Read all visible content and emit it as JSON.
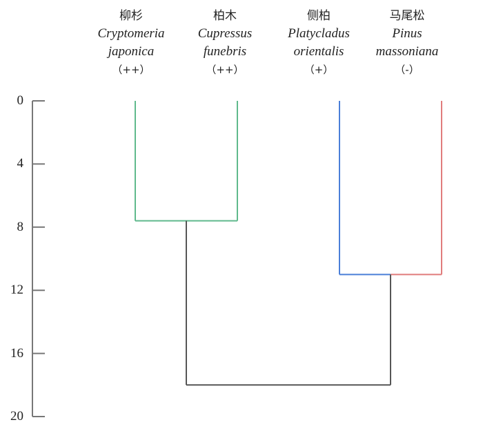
{
  "chart_data": {
    "type": "dendrogram",
    "orientation": "top-down",
    "yaxis": {
      "range": [
        0,
        20
      ],
      "ticks": [
        "0",
        "4",
        "8",
        "12",
        "16",
        "20"
      ],
      "direction": "increasing-downward"
    },
    "leaves": [
      {
        "cn": "柳杉",
        "latin1": "Cryptomeria",
        "latin2": "japonica",
        "sig": "（++）"
      },
      {
        "cn": "柏木",
        "latin1": "Cupressus",
        "latin2": "funebris",
        "sig": "（++）"
      },
      {
        "cn": "侧柏",
        "latin1": "Platycladus",
        "latin2": "orientalis",
        "sig": "（+）"
      },
      {
        "cn": "马尾松",
        "latin1": "Pinus",
        "latin2": "massoniana",
        "sig": "（-）"
      }
    ],
    "merges": [
      {
        "left": 0,
        "right": 1,
        "height": 7.6,
        "color": "#5fb98c"
      },
      {
        "left": 2,
        "right": 3,
        "height": 11,
        "left_color": "#4a7fd8",
        "right_color": "#e07c7c"
      },
      {
        "left": "cluster-0",
        "right": "cluster-1",
        "height": 18,
        "color": "#555555"
      }
    ],
    "colors": {
      "axis": "#777777",
      "green": "#5fb98c",
      "blue": "#4a7fd8",
      "red": "#e07c7c",
      "root": "#555555"
    }
  }
}
